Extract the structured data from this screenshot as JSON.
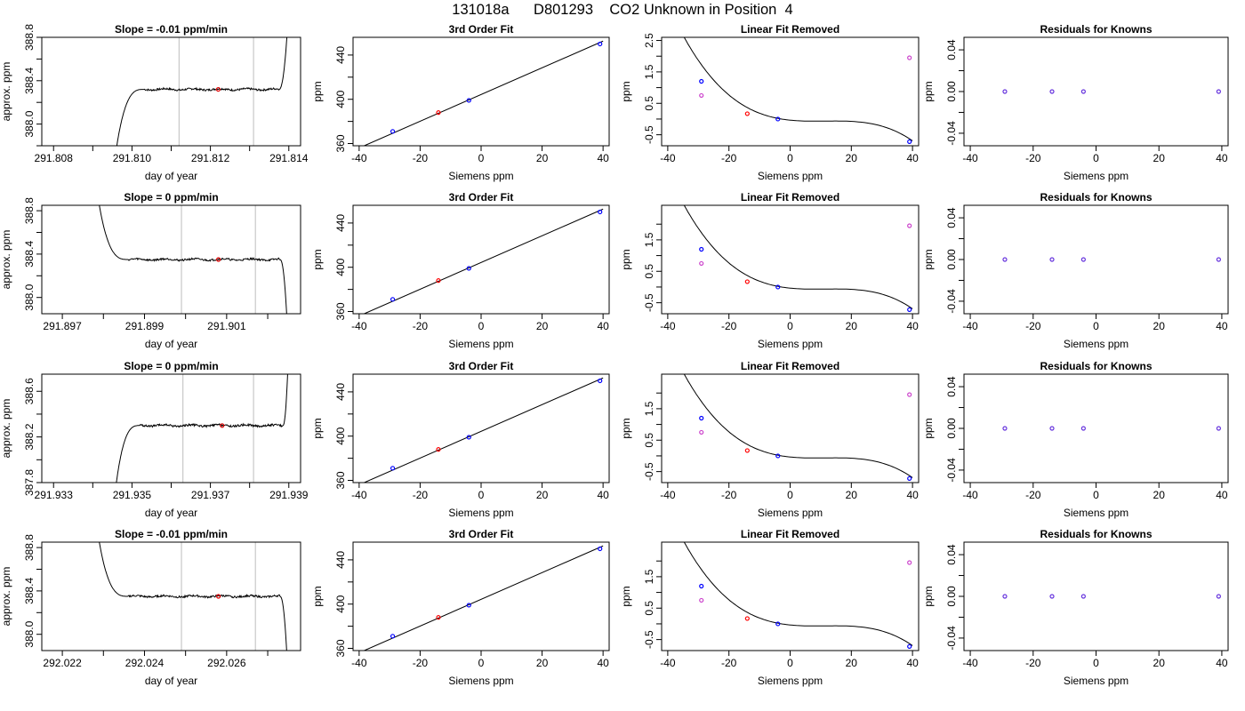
{
  "page": {
    "title": "131018a      D801293    CO2 Unknown in Position  4"
  },
  "chart_data": [
    {
      "type": "line",
      "row": 0,
      "col": 0,
      "title": "Slope =  -0.01  ppm/min",
      "xlabel": "day of year",
      "ylabel": "approx. ppm",
      "xlim": [
        291.8077,
        291.8143
      ],
      "ylim": [
        387.8,
        388.8
      ],
      "xticks": [
        291.808,
        291.81,
        291.812,
        291.814
      ],
      "xtick_labels": [
        "291.808",
        "291.810",
        "291.812",
        "291.814"
      ],
      "xticks_minor": [
        291.809,
        291.811,
        291.813
      ],
      "yticks": [
        388.0,
        388.4,
        388.8
      ],
      "ytick_labels": [
        "388.0",
        "388.4",
        "388.8"
      ],
      "yticks_minor": [
        387.8,
        388.2,
        388.6
      ],
      "window": [
        291.8112,
        291.8131
      ],
      "trace": {
        "start": 291.8095,
        "rise_end": 291.8103,
        "level": 388.32,
        "end_flat": 291.81375,
        "end": 291.814,
        "end_dir": "up"
      },
      "marker": {
        "x": 291.8122,
        "y": 388.32,
        "color": "#e00000"
      }
    },
    {
      "type": "scatter",
      "row": 0,
      "col": 1,
      "title": "3rd Order Fit",
      "xlabel": "Siemens ppm",
      "ylabel": "ppm",
      "xlim": [
        -42,
        42
      ],
      "ylim": [
        358,
        456
      ],
      "xticks": [
        -40,
        -20,
        0,
        20,
        40
      ],
      "xtick_labels": [
        "-40",
        "-20",
        "0",
        "20",
        "40"
      ],
      "yticks": [
        360,
        400,
        440
      ],
      "ytick_labels": [
        "360",
        "400",
        "440"
      ],
      "yticks_minor": [
        380,
        420
      ],
      "fit_line": {
        "x0": -38.5,
        "x1": 40
      },
      "points": [
        {
          "x": -29,
          "y": 371,
          "color": "#0000ff"
        },
        {
          "x": -14,
          "y": 388,
          "color": "#ff0000"
        },
        {
          "x": -4,
          "y": 399,
          "color": "#0000ff"
        },
        {
          "x": 39,
          "y": 450,
          "color": "#0000ff"
        }
      ]
    },
    {
      "type": "scatter",
      "row": 0,
      "col": 2,
      "title": "Linear Fit Removed",
      "xlabel": "Siemens ppm",
      "ylabel": "ppm",
      "xlim": [
        -42,
        42
      ],
      "ylim": [
        -0.85,
        2.6
      ],
      "xticks": [
        -40,
        -20,
        0,
        20,
        40
      ],
      "xtick_labels": [
        "-40",
        "-20",
        "0",
        "20",
        "40"
      ],
      "yticks": [
        -0.5,
        0.5,
        1.5,
        2.5
      ],
      "ytick_labels": [
        "-0.5",
        "0.5",
        "1.5",
        "2.5"
      ],
      "yticks_minor": [
        0.0,
        1.0,
        2.0
      ],
      "curve": {
        "x0": -38.5,
        "x1": 40,
        "coef": [
          0.004,
          -0.0003,
          0.001,
          -2.77e-05
        ]
      },
      "points": [
        {
          "x": -29,
          "y": 1.2,
          "color": "#0000ff"
        },
        {
          "x": -29,
          "y": 0.75,
          "color": "#cc44cc"
        },
        {
          "x": -14,
          "y": 0.17,
          "color": "#ff0000"
        },
        {
          "x": -4,
          "y": 0.0,
          "color": "#0000ff"
        },
        {
          "x": 39,
          "y": -0.72,
          "color": "#0000ff"
        },
        {
          "x": 39,
          "y": 1.95,
          "color": "#cc44cc"
        }
      ]
    },
    {
      "type": "scatter",
      "row": 0,
      "col": 3,
      "title": "Residuals for Knowns",
      "xlabel": "Siemens ppm",
      "ylabel": "ppm",
      "xlim": [
        -42,
        42
      ],
      "ylim": [
        -0.052,
        0.052
      ],
      "xticks": [
        -40,
        -20,
        0,
        20,
        40
      ],
      "xtick_labels": [
        "-40",
        "-20",
        "0",
        "20",
        "40"
      ],
      "yticks": [
        -0.04,
        0.0,
        0.04
      ],
      "ytick_labels": [
        "-0.04",
        "0.00",
        "0.04"
      ],
      "yticks_minor": [
        -0.02,
        0.02
      ],
      "points": [
        {
          "x": -29,
          "y": 0,
          "color": "#6633dd"
        },
        {
          "x": -14,
          "y": 0,
          "color": "#6633dd"
        },
        {
          "x": -4,
          "y": 0,
          "color": "#6633dd"
        },
        {
          "x": 39,
          "y": 0,
          "color": "#6633dd"
        }
      ]
    },
    {
      "type": "line",
      "row": 1,
      "col": 0,
      "title": "Slope =  0  ppm/min",
      "xlabel": "day of year",
      "ylabel": "approx. ppm",
      "xlim": [
        291.8965,
        291.9028
      ],
      "ylim": [
        387.85,
        388.85
      ],
      "xticks": [
        291.897,
        291.899,
        291.901
      ],
      "xtick_labels": [
        "291.897",
        "291.899",
        "291.901"
      ],
      "xticks_minor": [
        291.898,
        291.9,
        291.902
      ],
      "yticks": [
        388.0,
        388.4,
        388.8
      ],
      "ytick_labels": [
        "388.0",
        "388.4",
        "388.8"
      ],
      "yticks_minor": [
        388.2,
        388.6
      ],
      "window": [
        291.8999,
        291.9017
      ],
      "trace": {
        "start": 291.8979,
        "rise_end": 291.8986,
        "start_level": 388.85,
        "level": 388.35,
        "end_flat": 291.9023,
        "end": 291.9025,
        "end_dir": "down"
      },
      "marker": {
        "x": 291.9008,
        "y": 388.35,
        "color": "#e00000"
      }
    },
    {
      "type": "scatter",
      "row": 1,
      "col": 1,
      "title": "3rd Order Fit",
      "xlabel": "Siemens ppm",
      "ylabel": "ppm",
      "xlim": [
        -42,
        42
      ],
      "ylim": [
        358,
        456
      ],
      "xticks": [
        -40,
        -20,
        0,
        20,
        40
      ],
      "xtick_labels": [
        "-40",
        "-20",
        "0",
        "20",
        "40"
      ],
      "yticks": [
        360,
        400,
        440
      ],
      "ytick_labels": [
        "360",
        "400",
        "440"
      ],
      "yticks_minor": [
        380,
        420
      ],
      "fit_line": {
        "x0": -38.5,
        "x1": 40
      },
      "points": [
        {
          "x": -29,
          "y": 371,
          "color": "#0000ff"
        },
        {
          "x": -14,
          "y": 388,
          "color": "#ff0000"
        },
        {
          "x": -4,
          "y": 399,
          "color": "#0000ff"
        },
        {
          "x": 39,
          "y": 450,
          "color": "#0000ff"
        }
      ]
    },
    {
      "type": "scatter",
      "row": 1,
      "col": 2,
      "title": "Linear Fit Removed",
      "xlabel": "Siemens ppm",
      "ylabel": "ppm",
      "xlim": [
        -42,
        42
      ],
      "ylim": [
        -0.85,
        2.6
      ],
      "xticks": [
        -40,
        -20,
        0,
        20,
        40
      ],
      "xtick_labels": [
        "-40",
        "-20",
        "0",
        "20",
        "40"
      ],
      "yticks": [
        -0.5,
        0.5,
        1.5
      ],
      "ytick_labels": [
        "-0.5",
        "0.5",
        "1.5"
      ],
      "yticks_minor": [
        0.0,
        1.0,
        2.0
      ],
      "curve": {
        "x0": -38.5,
        "x1": 40,
        "coef": [
          0.004,
          -0.0003,
          0.001,
          -2.77e-05
        ]
      },
      "points": [
        {
          "x": -29,
          "y": 1.2,
          "color": "#0000ff"
        },
        {
          "x": -29,
          "y": 0.75,
          "color": "#cc44cc"
        },
        {
          "x": -14,
          "y": 0.17,
          "color": "#ff0000"
        },
        {
          "x": -4,
          "y": 0.0,
          "color": "#0000ff"
        },
        {
          "x": 39,
          "y": -0.72,
          "color": "#0000ff"
        },
        {
          "x": 39,
          "y": 1.95,
          "color": "#cc44cc"
        }
      ]
    },
    {
      "type": "scatter",
      "row": 1,
      "col": 3,
      "title": "Residuals for Knowns",
      "xlabel": "Siemens ppm",
      "ylabel": "ppm",
      "xlim": [
        -42,
        42
      ],
      "ylim": [
        -0.052,
        0.052
      ],
      "xticks": [
        -40,
        -20,
        0,
        20,
        40
      ],
      "xtick_labels": [
        "-40",
        "-20",
        "0",
        "20",
        "40"
      ],
      "yticks": [
        -0.04,
        0.0,
        0.04
      ],
      "ytick_labels": [
        "-0.04",
        "0.00",
        "0.04"
      ],
      "yticks_minor": [
        -0.02,
        0.02
      ],
      "points": [
        {
          "x": -29,
          "y": 0,
          "color": "#6633dd"
        },
        {
          "x": -14,
          "y": 0,
          "color": "#6633dd"
        },
        {
          "x": -4,
          "y": 0,
          "color": "#6633dd"
        },
        {
          "x": 39,
          "y": 0,
          "color": "#6633dd"
        }
      ]
    },
    {
      "type": "line",
      "row": 2,
      "col": 0,
      "title": "Slope =  0  ppm/min",
      "xlabel": "day of year",
      "ylabel": "approx. ppm",
      "xlim": [
        291.9327,
        291.9393
      ],
      "ylim": [
        387.8,
        388.75
      ],
      "xticks": [
        291.933,
        291.935,
        291.937,
        291.939
      ],
      "xtick_labels": [
        "291.933",
        "291.935",
        "291.937",
        "291.939"
      ],
      "xticks_minor": [
        291.934,
        291.936,
        291.938
      ],
      "yticks": [
        387.8,
        388.2,
        388.6
      ],
      "ytick_labels": [
        "387.8",
        "388.2",
        "388.6"
      ],
      "yticks_minor": [
        388.0,
        388.4
      ],
      "window": [
        291.9363,
        291.9381
      ],
      "trace": {
        "start": 291.9345,
        "rise_end": 291.9352,
        "level": 388.3,
        "end_flat": 291.93885,
        "end": 291.939,
        "end_dir": "up"
      },
      "marker": {
        "x": 291.9373,
        "y": 388.3,
        "color": "#e00000"
      }
    },
    {
      "type": "scatter",
      "row": 2,
      "col": 1,
      "title": "3rd Order Fit",
      "xlabel": "Siemens ppm",
      "ylabel": "ppm",
      "xlim": [
        -42,
        42
      ],
      "ylim": [
        358,
        456
      ],
      "xticks": [
        -40,
        -20,
        0,
        20,
        40
      ],
      "xtick_labels": [
        "-40",
        "-20",
        "0",
        "20",
        "40"
      ],
      "yticks": [
        360,
        400,
        440
      ],
      "ytick_labels": [
        "360",
        "400",
        "440"
      ],
      "yticks_minor": [
        380,
        420
      ],
      "fit_line": {
        "x0": -38.5,
        "x1": 40
      },
      "points": [
        {
          "x": -29,
          "y": 371,
          "color": "#0000ff"
        },
        {
          "x": -14,
          "y": 388,
          "color": "#ff0000"
        },
        {
          "x": -4,
          "y": 399,
          "color": "#0000ff"
        },
        {
          "x": 39,
          "y": 450,
          "color": "#0000ff"
        }
      ]
    },
    {
      "type": "scatter",
      "row": 2,
      "col": 2,
      "title": "Linear Fit Removed",
      "xlabel": "Siemens ppm",
      "ylabel": "ppm",
      "xlim": [
        -42,
        42
      ],
      "ylim": [
        -0.85,
        2.6
      ],
      "xticks": [
        -40,
        -20,
        0,
        20,
        40
      ],
      "xtick_labels": [
        "-40",
        "-20",
        "0",
        "20",
        "40"
      ],
      "yticks": [
        -0.5,
        0.5,
        1.5
      ],
      "ytick_labels": [
        "-0.5",
        "0.5",
        "1.5"
      ],
      "yticks_minor": [
        0.0,
        1.0,
        2.0
      ],
      "curve": {
        "x0": -38.5,
        "x1": 40,
        "coef": [
          0.004,
          -0.0003,
          0.001,
          -2.77e-05
        ]
      },
      "points": [
        {
          "x": -29,
          "y": 1.2,
          "color": "#0000ff"
        },
        {
          "x": -29,
          "y": 0.75,
          "color": "#cc44cc"
        },
        {
          "x": -14,
          "y": 0.17,
          "color": "#ff0000"
        },
        {
          "x": -4,
          "y": 0.0,
          "color": "#0000ff"
        },
        {
          "x": 39,
          "y": -0.72,
          "color": "#0000ff"
        },
        {
          "x": 39,
          "y": 1.95,
          "color": "#cc44cc"
        }
      ]
    },
    {
      "type": "scatter",
      "row": 2,
      "col": 3,
      "title": "Residuals for Knowns",
      "xlabel": "Siemens ppm",
      "ylabel": "ppm",
      "xlim": [
        -42,
        42
      ],
      "ylim": [
        -0.052,
        0.052
      ],
      "xticks": [
        -40,
        -20,
        0,
        20,
        40
      ],
      "xtick_labels": [
        "-40",
        "-20",
        "0",
        "20",
        "40"
      ],
      "yticks": [
        -0.04,
        0.0,
        0.04
      ],
      "ytick_labels": [
        "-0.04",
        "0.00",
        "0.04"
      ],
      "yticks_minor": [
        -0.02,
        0.02
      ],
      "points": [
        {
          "x": -29,
          "y": 0,
          "color": "#6633dd"
        },
        {
          "x": -14,
          "y": 0,
          "color": "#6633dd"
        },
        {
          "x": -4,
          "y": 0,
          "color": "#6633dd"
        },
        {
          "x": 39,
          "y": 0,
          "color": "#6633dd"
        }
      ]
    },
    {
      "type": "line",
      "row": 3,
      "col": 0,
      "title": "Slope =  -0.01  ppm/min",
      "xlabel": "day of year",
      "ylabel": "approx. ppm",
      "xlim": [
        292.0215,
        292.0278
      ],
      "ylim": [
        387.85,
        388.85
      ],
      "xticks": [
        292.022,
        292.024,
        292.026
      ],
      "xtick_labels": [
        "292.022",
        "292.024",
        "292.026"
      ],
      "xticks_minor": [
        292.023,
        292.025,
        292.027
      ],
      "yticks": [
        388.0,
        388.4,
        388.8
      ],
      "ytick_labels": [
        "388.0",
        "388.4",
        "388.8"
      ],
      "yticks_minor": [
        388.2,
        388.6
      ],
      "window": [
        292.0249,
        292.0267
      ],
      "trace": {
        "start": 292.0229,
        "rise_end": 292.0236,
        "start_level": 388.85,
        "level": 388.35,
        "end_flat": 292.0273,
        "end": 292.0275,
        "end_dir": "down"
      },
      "marker": {
        "x": 292.0258,
        "y": 388.35,
        "color": "#e00000"
      }
    },
    {
      "type": "scatter",
      "row": 3,
      "col": 1,
      "title": "3rd Order Fit",
      "xlabel": "Siemens ppm",
      "ylabel": "ppm",
      "xlim": [
        -42,
        42
      ],
      "ylim": [
        358,
        456
      ],
      "xticks": [
        -40,
        -20,
        0,
        20,
        40
      ],
      "xtick_labels": [
        "-40",
        "-20",
        "0",
        "20",
        "40"
      ],
      "yticks": [
        360,
        400,
        440
      ],
      "ytick_labels": [
        "360",
        "400",
        "440"
      ],
      "yticks_minor": [
        380,
        420
      ],
      "fit_line": {
        "x0": -38.5,
        "x1": 40
      },
      "points": [
        {
          "x": -29,
          "y": 371,
          "color": "#0000ff"
        },
        {
          "x": -14,
          "y": 388,
          "color": "#ff0000"
        },
        {
          "x": -4,
          "y": 399,
          "color": "#0000ff"
        },
        {
          "x": 39,
          "y": 450,
          "color": "#0000ff"
        }
      ]
    },
    {
      "type": "scatter",
      "row": 3,
      "col": 2,
      "title": "Linear Fit Removed",
      "xlabel": "Siemens ppm",
      "ylabel": "ppm",
      "xlim": [
        -42,
        42
      ],
      "ylim": [
        -0.85,
        2.6
      ],
      "xticks": [
        -40,
        -20,
        0,
        20,
        40
      ],
      "xtick_labels": [
        "-40",
        "-20",
        "0",
        "20",
        "40"
      ],
      "yticks": [
        -0.5,
        0.5,
        1.5
      ],
      "ytick_labels": [
        "-0.5",
        "0.5",
        "1.5"
      ],
      "yticks_minor": [
        0.0,
        1.0,
        2.0
      ],
      "curve": {
        "x0": -38.5,
        "x1": 40,
        "coef": [
          0.004,
          -0.0003,
          0.001,
          -2.77e-05
        ]
      },
      "points": [
        {
          "x": -29,
          "y": 1.2,
          "color": "#0000ff"
        },
        {
          "x": -29,
          "y": 0.75,
          "color": "#cc44cc"
        },
        {
          "x": -14,
          "y": 0.17,
          "color": "#ff0000"
        },
        {
          "x": -4,
          "y": 0.0,
          "color": "#0000ff"
        },
        {
          "x": 39,
          "y": -0.72,
          "color": "#0000ff"
        },
        {
          "x": 39,
          "y": 1.95,
          "color": "#cc44cc"
        }
      ]
    },
    {
      "type": "scatter",
      "row": 3,
      "col": 3,
      "title": "Residuals for Knowns",
      "xlabel": "Siemens ppm",
      "ylabel": "ppm",
      "xlim": [
        -42,
        42
      ],
      "ylim": [
        -0.052,
        0.052
      ],
      "xticks": [
        -40,
        -20,
        0,
        20,
        40
      ],
      "xtick_labels": [
        "-40",
        "-20",
        "0",
        "20",
        "40"
      ],
      "yticks": [
        -0.04,
        0.0,
        0.04
      ],
      "ytick_labels": [
        "-0.04",
        "0.00",
        "0.04"
      ],
      "yticks_minor": [
        -0.02,
        0.02
      ],
      "points": [
        {
          "x": -29,
          "y": 0,
          "color": "#6633dd"
        },
        {
          "x": -14,
          "y": 0,
          "color": "#6633dd"
        },
        {
          "x": -4,
          "y": 0,
          "color": "#6633dd"
        },
        {
          "x": 39,
          "y": 0,
          "color": "#6633dd"
        }
      ]
    }
  ]
}
